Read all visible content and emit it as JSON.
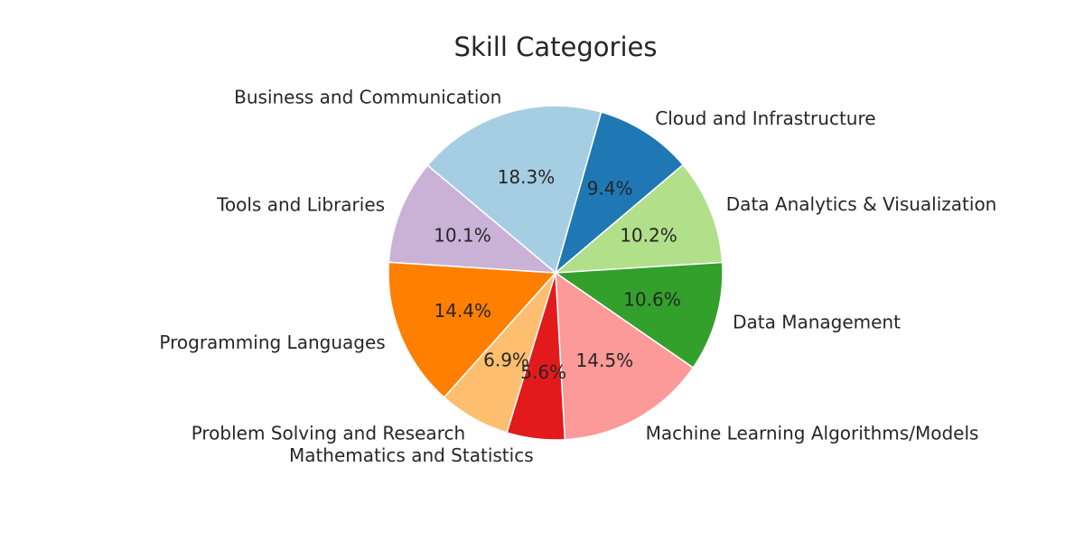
{
  "chart_data": {
    "type": "pie",
    "title": "Skill Categories",
    "start_angle_deg": 140,
    "direction": "clockwise",
    "slices": [
      {
        "label": "Business and Communication",
        "value": 18.3,
        "pct_label": "18.3%",
        "color": "#a6cee3"
      },
      {
        "label": "Cloud and Infrastructure",
        "value": 9.4,
        "pct_label": "9.4%",
        "color": "#1f78b4"
      },
      {
        "label": "Data Analytics & Visualization",
        "value": 10.2,
        "pct_label": "10.2%",
        "color": "#b2df8a"
      },
      {
        "label": "Data Management",
        "value": 10.6,
        "pct_label": "10.6%",
        "color": "#33a02c"
      },
      {
        "label": "Machine Learning Algorithms/Models",
        "value": 14.5,
        "pct_label": "14.5%",
        "color": "#fb9a99"
      },
      {
        "label": "Mathematics and Statistics",
        "value": 5.6,
        "pct_label": "5.6%",
        "color": "#e31a1c"
      },
      {
        "label": "Problem Solving and Research",
        "value": 6.9,
        "pct_label": "6.9%",
        "color": "#fdbf6f"
      },
      {
        "label": "Programming Languages",
        "value": 14.4,
        "pct_label": "14.4%",
        "color": "#ff7f00"
      },
      {
        "label": "Tools and Libraries",
        "value": 10.1,
        "pct_label": "10.1%",
        "color": "#cab2d6"
      }
    ]
  }
}
